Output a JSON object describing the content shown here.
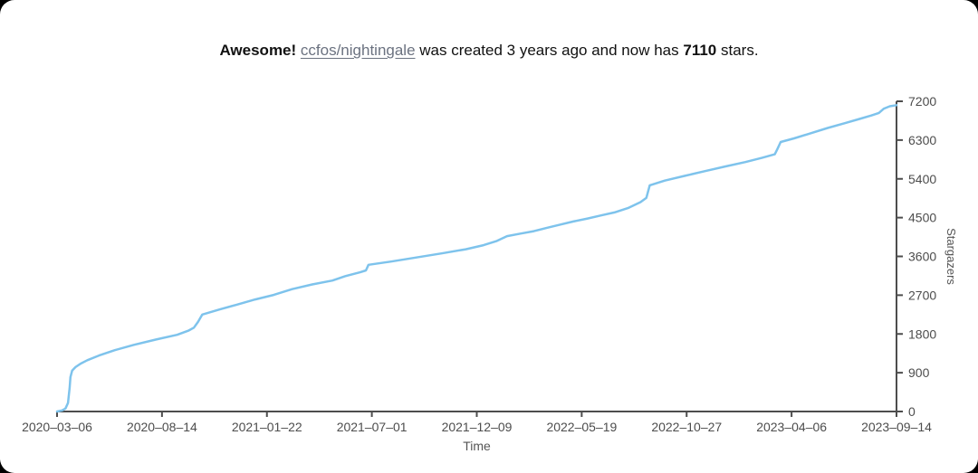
{
  "header": {
    "bold_intro": "Awesome!",
    "repo": "ccfos/nightingale",
    "middle": "was created 3 years ago and now has",
    "stars_count": "7110",
    "suffix": "stars."
  },
  "colors": {
    "line": "#7EC3EC",
    "axis": "#4d4d4d",
    "tick_text": "#4d4d4d",
    "axis_label_text": "#555555",
    "link": "#6b7280",
    "title_text": "#111111",
    "card_bg": "#ffffff",
    "page_bg": "#000000"
  },
  "chart_data": {
    "type": "line",
    "title": "Awesome! ccfos/nightingale was created 3 years ago and now has 7110 stars.",
    "xlabel": "Time",
    "ylabel": "Stargazers",
    "x_range": [
      "2020-03-06",
      "2023-09-14"
    ],
    "x_tick_labels": [
      "2020–03–06",
      "2020–08–14",
      "2021–01–22",
      "2021–07–01",
      "2021–12–09",
      "2022–05–19",
      "2022–10–27",
      "2023–04–06",
      "2023–09–14"
    ],
    "y_ticks": [
      0,
      900,
      1800,
      2700,
      3600,
      4500,
      5400,
      6300,
      7200
    ],
    "ylim": [
      0,
      7200
    ],
    "grid": false,
    "legend": "none",
    "y_axis_side": "right",
    "series": [
      {
        "name": "ccfos/nightingale",
        "final_value": 7110,
        "points": [
          [
            0.0,
            0
          ],
          [
            0.006,
            25
          ],
          [
            0.01,
            70
          ],
          [
            0.013,
            200
          ],
          [
            0.015,
            550
          ],
          [
            0.016,
            800
          ],
          [
            0.018,
            950
          ],
          [
            0.022,
            1030
          ],
          [
            0.028,
            1110
          ],
          [
            0.036,
            1190
          ],
          [
            0.05,
            1300
          ],
          [
            0.068,
            1420
          ],
          [
            0.092,
            1550
          ],
          [
            0.118,
            1670
          ],
          [
            0.143,
            1780
          ],
          [
            0.157,
            1880
          ],
          [
            0.163,
            1945
          ],
          [
            0.168,
            2080
          ],
          [
            0.173,
            2250
          ],
          [
            0.194,
            2370
          ],
          [
            0.214,
            2480
          ],
          [
            0.236,
            2600
          ],
          [
            0.258,
            2705
          ],
          [
            0.28,
            2840
          ],
          [
            0.304,
            2950
          ],
          [
            0.328,
            3040
          ],
          [
            0.343,
            3140
          ],
          [
            0.361,
            3230
          ],
          [
            0.368,
            3275
          ],
          [
            0.371,
            3405
          ],
          [
            0.398,
            3480
          ],
          [
            0.428,
            3575
          ],
          [
            0.458,
            3670
          ],
          [
            0.487,
            3765
          ],
          [
            0.508,
            3860
          ],
          [
            0.524,
            3960
          ],
          [
            0.536,
            4070
          ],
          [
            0.552,
            4130
          ],
          [
            0.568,
            4185
          ],
          [
            0.583,
            4260
          ],
          [
            0.598,
            4330
          ],
          [
            0.615,
            4410
          ],
          [
            0.632,
            4480
          ],
          [
            0.648,
            4550
          ],
          [
            0.664,
            4620
          ],
          [
            0.68,
            4720
          ],
          [
            0.695,
            4860
          ],
          [
            0.702,
            4960
          ],
          [
            0.706,
            5250
          ],
          [
            0.724,
            5360
          ],
          [
            0.748,
            5470
          ],
          [
            0.772,
            5580
          ],
          [
            0.797,
            5690
          ],
          [
            0.82,
            5790
          ],
          [
            0.84,
            5890
          ],
          [
            0.855,
            5970
          ],
          [
            0.858,
            6090
          ],
          [
            0.862,
            6255
          ],
          [
            0.878,
            6340
          ],
          [
            0.898,
            6460
          ],
          [
            0.918,
            6580
          ],
          [
            0.938,
            6690
          ],
          [
            0.956,
            6790
          ],
          [
            0.97,
            6870
          ],
          [
            0.979,
            6930
          ],
          [
            0.985,
            7030
          ],
          [
            0.992,
            7085
          ],
          [
            1.0,
            7110
          ]
        ]
      }
    ]
  }
}
